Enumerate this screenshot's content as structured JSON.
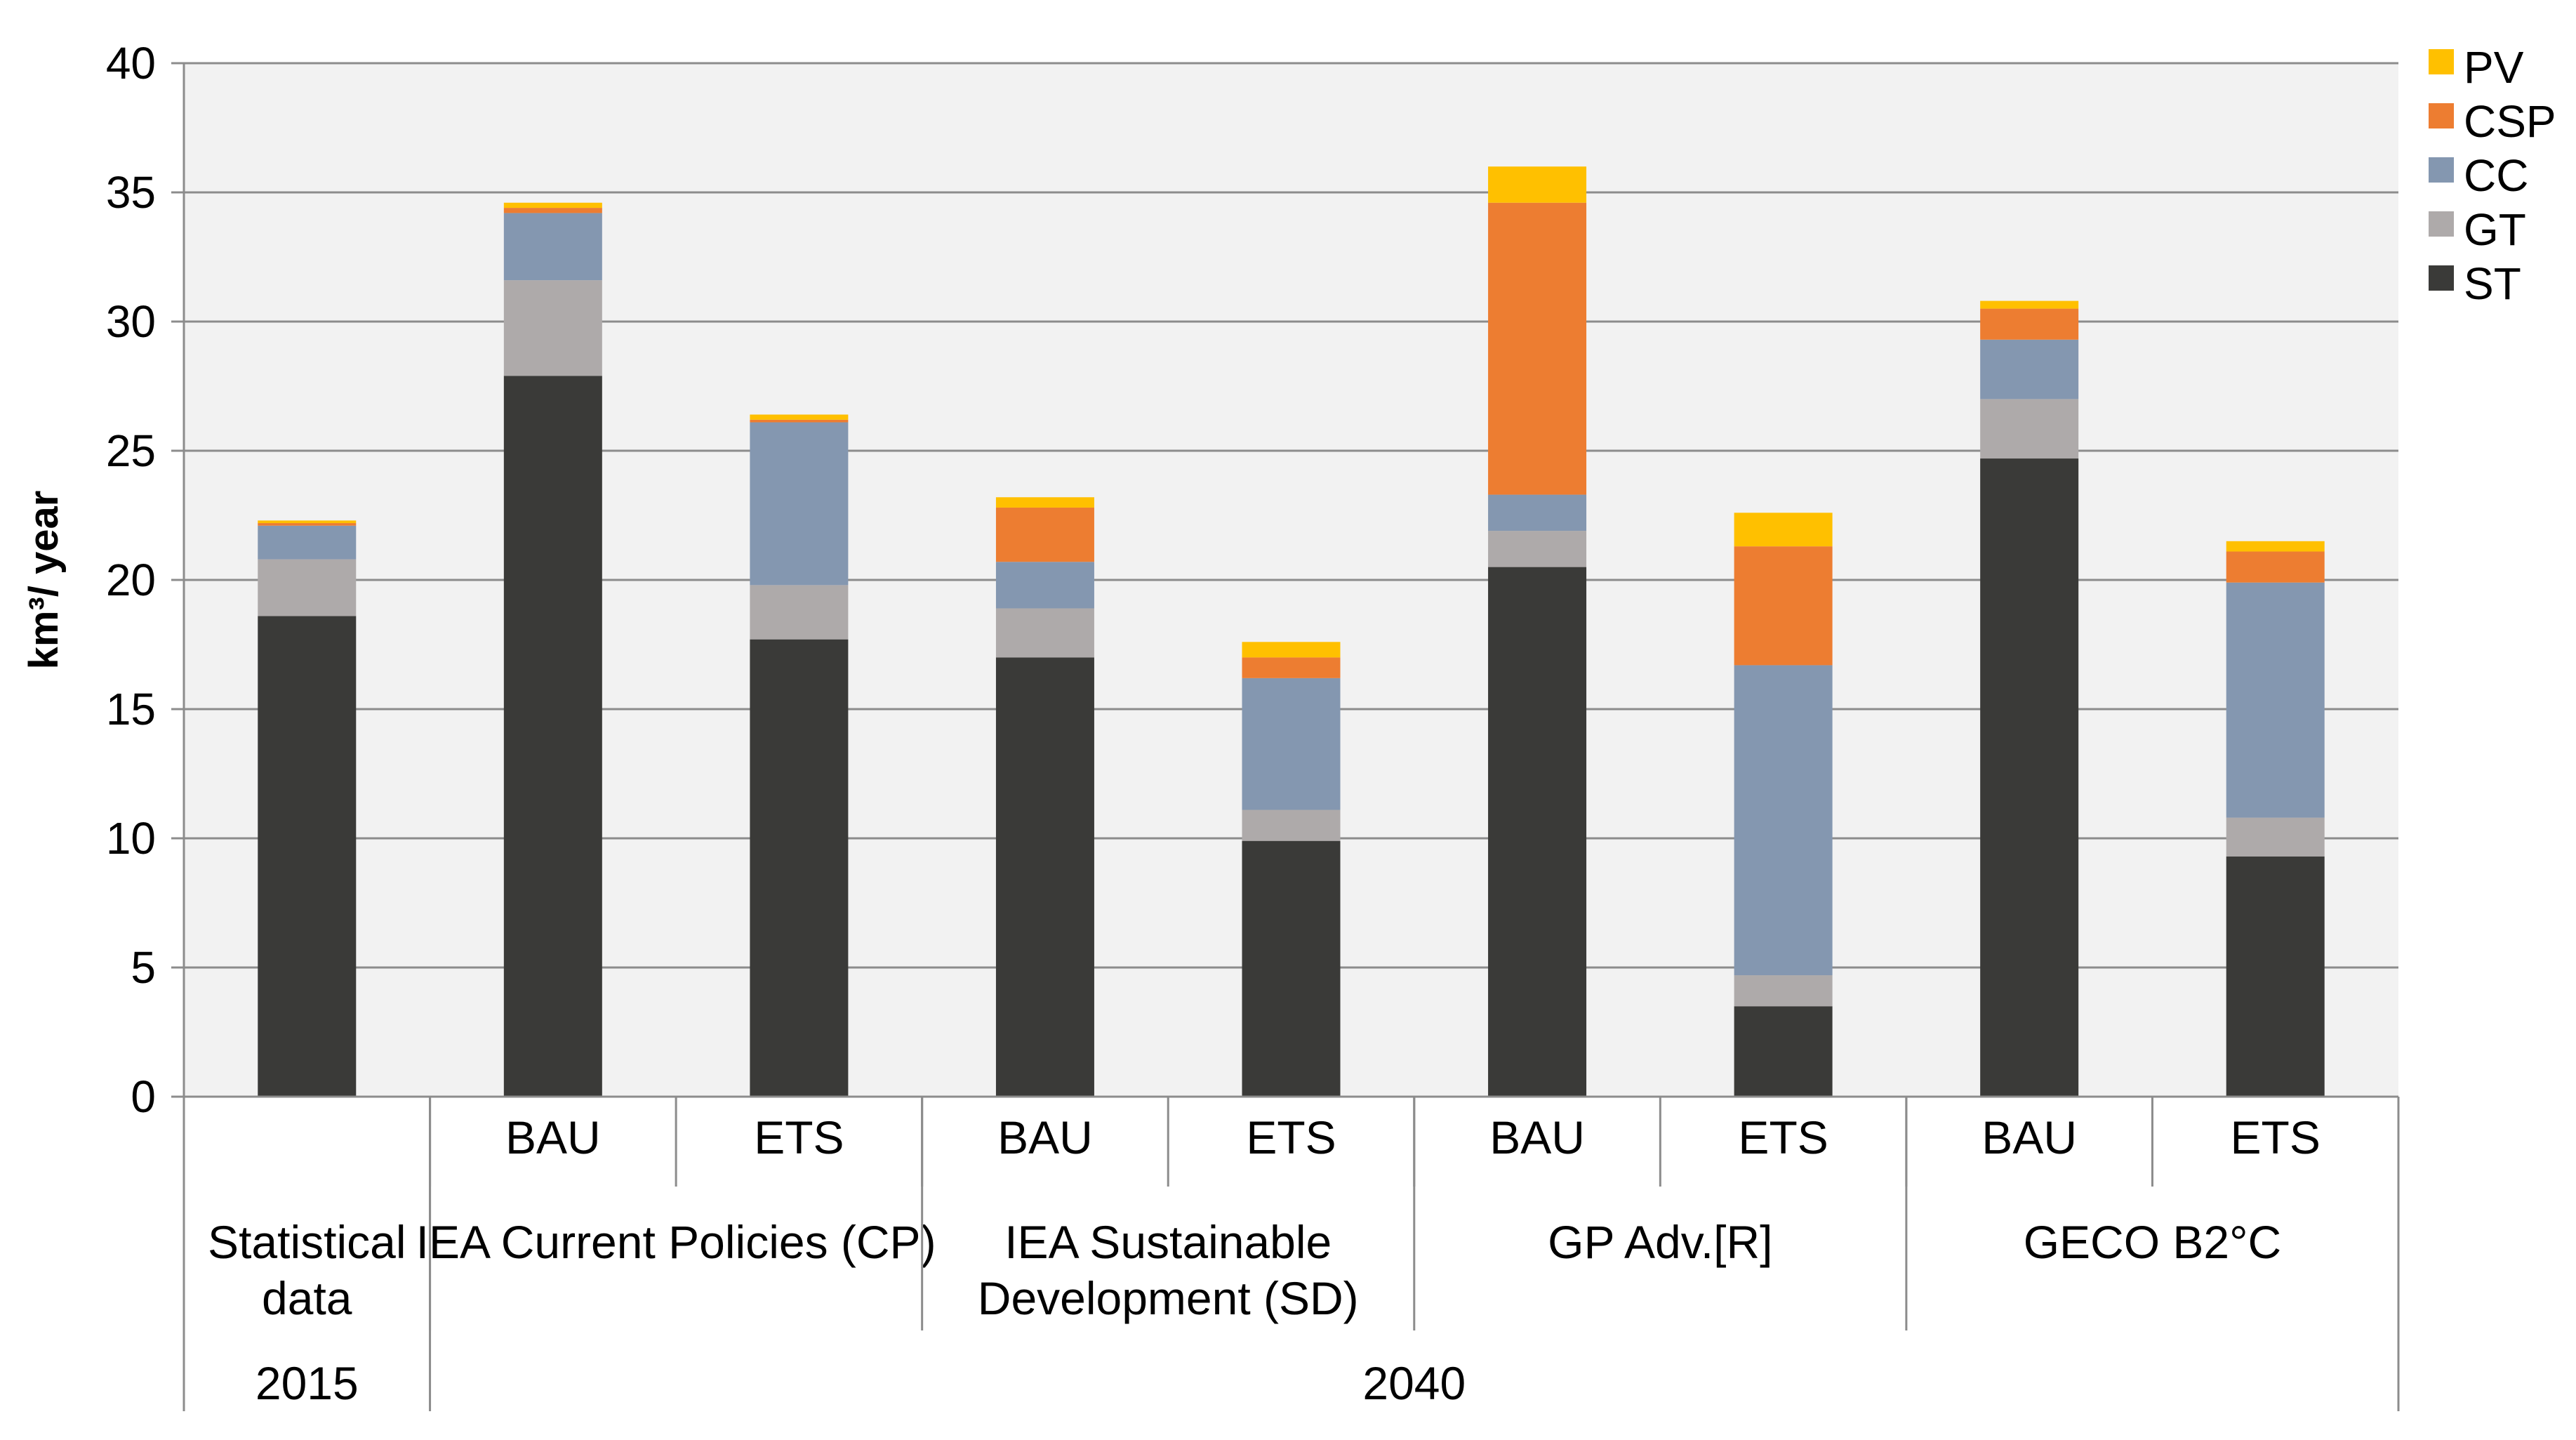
{
  "chart_data": {
    "type": "bar",
    "stacked": true,
    "title": "",
    "ylabel": "km³/ year",
    "xlabel": "",
    "ylim": [
      0,
      40
    ],
    "yticks": [
      "0",
      "5",
      "10",
      "15",
      "20",
      "25",
      "30",
      "35",
      "40"
    ],
    "grid": true,
    "legend_position": "top-right",
    "categories": [
      "",
      "BAU",
      "ETS",
      "BAU",
      "ETS",
      "BAU",
      "ETS",
      "BAU",
      "ETS"
    ],
    "scenario_groups": [
      {
        "label": "Statistical data",
        "bars": 1
      },
      {
        "label": "IEA Current Policies (CP)",
        "bars": 2
      },
      {
        "label": "IEA Sustainable Development (SD)",
        "bars": 2
      },
      {
        "label": "GP Adv.[R]",
        "bars": 2
      },
      {
        "label": "GECO B2°C",
        "bars": 2
      }
    ],
    "year_groups": [
      {
        "label": "2015",
        "bars": 1
      },
      {
        "label": "2040",
        "bars": 8
      }
    ],
    "series": [
      {
        "name": "ST",
        "color": "#3a3a38",
        "values": [
          18.6,
          27.9,
          17.7,
          17.0,
          9.9,
          20.5,
          3.5,
          24.7,
          9.3
        ]
      },
      {
        "name": "GT",
        "color": "#aeaaaa",
        "values": [
          2.2,
          3.7,
          2.1,
          1.9,
          1.2,
          1.4,
          1.2,
          2.3,
          1.5
        ]
      },
      {
        "name": "CC",
        "color": "#8497b0",
        "values": [
          1.3,
          2.6,
          6.3,
          1.8,
          5.1,
          1.4,
          12.0,
          2.3,
          9.1
        ]
      },
      {
        "name": "CSP",
        "color": "#ed7d31",
        "values": [
          0.1,
          0.2,
          0.1,
          2.1,
          0.8,
          11.3,
          4.6,
          1.2,
          1.2
        ]
      },
      {
        "name": "PV",
        "color": "#ffc000",
        "values": [
          0.1,
          0.2,
          0.2,
          0.4,
          0.6,
          1.4,
          1.3,
          0.3,
          0.4
        ]
      }
    ],
    "legend_order": [
      "PV",
      "CSP",
      "CC",
      "GT",
      "ST"
    ]
  }
}
